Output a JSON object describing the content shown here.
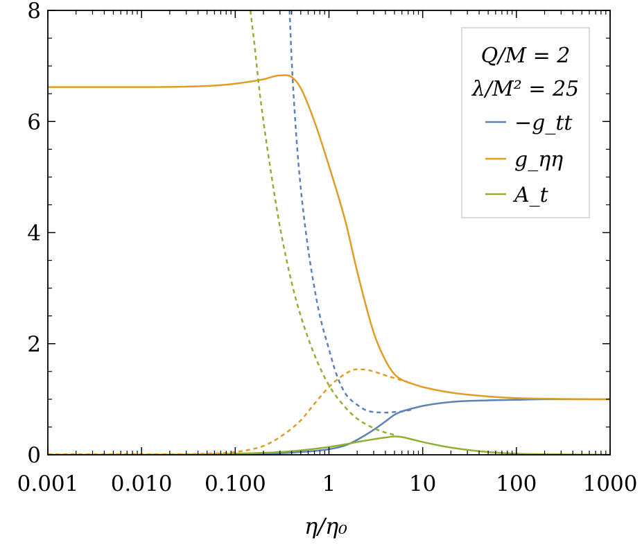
{
  "chart_data": {
    "type": "line",
    "xscale": "log",
    "xlim": [
      0.001,
      1000
    ],
    "ylim": [
      0,
      8
    ],
    "xlabel": "η/η₀",
    "ylabel": "",
    "x_ticks": [
      {
        "value": 0.001,
        "label": "0.001"
      },
      {
        "value": 0.01,
        "label": "0.010"
      },
      {
        "value": 0.1,
        "label": "0.100"
      },
      {
        "value": 1,
        "label": "1"
      },
      {
        "value": 10,
        "label": "10"
      },
      {
        "value": 100,
        "label": "100"
      },
      {
        "value": 1000,
        "label": "1000"
      }
    ],
    "y_ticks": [
      {
        "value": 0,
        "label": "0"
      },
      {
        "value": 2,
        "label": "2"
      },
      {
        "value": 4,
        "label": "4"
      },
      {
        "value": 6,
        "label": "6"
      },
      {
        "value": 8,
        "label": "8"
      }
    ],
    "legend_position": "top-right",
    "legend_header": [
      "Q/M = 2",
      "λ/M² = 25"
    ],
    "series": [
      {
        "name": "−g_tt",
        "color": "#5E81B5",
        "style": "solid",
        "x": [
          0.001,
          0.01,
          0.1,
          0.3,
          0.5,
          1,
          1.5,
          2,
          3,
          4,
          5,
          6,
          8,
          10,
          20,
          50,
          100,
          200,
          1000
        ],
        "y": [
          0.0,
          0.0,
          0.01,
          0.03,
          0.05,
          0.1,
          0.17,
          0.27,
          0.45,
          0.6,
          0.72,
          0.78,
          0.84,
          0.88,
          0.95,
          0.98,
          0.99,
          1.0,
          1.0
        ]
      },
      {
        "name": "g_ηη",
        "color": "#E19C24",
        "style": "solid",
        "x": [
          0.001,
          0.01,
          0.05,
          0.1,
          0.2,
          0.3,
          0.4,
          0.5,
          0.7,
          1,
          1.5,
          2,
          3,
          4,
          5,
          6,
          8,
          10,
          20,
          50,
          100,
          1000
        ],
        "y": [
          6.62,
          6.62,
          6.64,
          6.68,
          6.76,
          6.83,
          6.8,
          6.6,
          6.0,
          5.2,
          4.2,
          3.3,
          2.2,
          1.7,
          1.45,
          1.35,
          1.27,
          1.22,
          1.12,
          1.05,
          1.02,
          1.0
        ]
      },
      {
        "name": "A_t",
        "color": "#8FB032",
        "style": "solid",
        "x": [
          0.001,
          0.01,
          0.1,
          0.3,
          0.5,
          1,
          1.5,
          2,
          3,
          4,
          5,
          6,
          8,
          10,
          20,
          50,
          100,
          200,
          1000
        ],
        "y": [
          0.0,
          0.0,
          0.02,
          0.05,
          0.08,
          0.14,
          0.19,
          0.23,
          0.28,
          0.31,
          0.33,
          0.32,
          0.27,
          0.23,
          0.13,
          0.05,
          0.02,
          0.01,
          0.0
        ]
      },
      {
        "color": "#5E81B5",
        "style": "dashed",
        "x": [
          0.38,
          0.4,
          0.45,
          0.5,
          0.6,
          0.7,
          0.8,
          1,
          1.2,
          1.5,
          2,
          2.5,
          3,
          4,
          5,
          6,
          7,
          8
        ],
        "y": [
          8.0,
          7.1,
          5.7,
          4.8,
          3.7,
          3.0,
          2.5,
          1.9,
          1.45,
          1.1,
          0.9,
          0.8,
          0.77,
          0.76,
          0.77,
          0.78,
          0.8,
          0.82
        ]
      },
      {
        "color": "#E19C24",
        "style": "dashed",
        "x": [
          0.001,
          0.01,
          0.05,
          0.1,
          0.2,
          0.3,
          0.5,
          0.7,
          1,
          1.5,
          2,
          2.5,
          3,
          4,
          5,
          6,
          7
        ],
        "y": [
          0.01,
          0.01,
          0.02,
          0.05,
          0.16,
          0.32,
          0.62,
          0.92,
          1.22,
          1.46,
          1.54,
          1.53,
          1.5,
          1.43,
          1.38,
          1.34,
          1.31
        ]
      },
      {
        "color": "#8FB032",
        "style": "dashed",
        "x": [
          0.145,
          0.16,
          0.18,
          0.2,
          0.25,
          0.3,
          0.4,
          0.5,
          0.7,
          1,
          1.5,
          2,
          3,
          4,
          5
        ],
        "y": [
          8.0,
          7.4,
          6.6,
          6.0,
          4.9,
          4.1,
          3.1,
          2.5,
          1.8,
          1.25,
          0.85,
          0.65,
          0.48,
          0.4,
          0.36
        ]
      }
    ]
  }
}
